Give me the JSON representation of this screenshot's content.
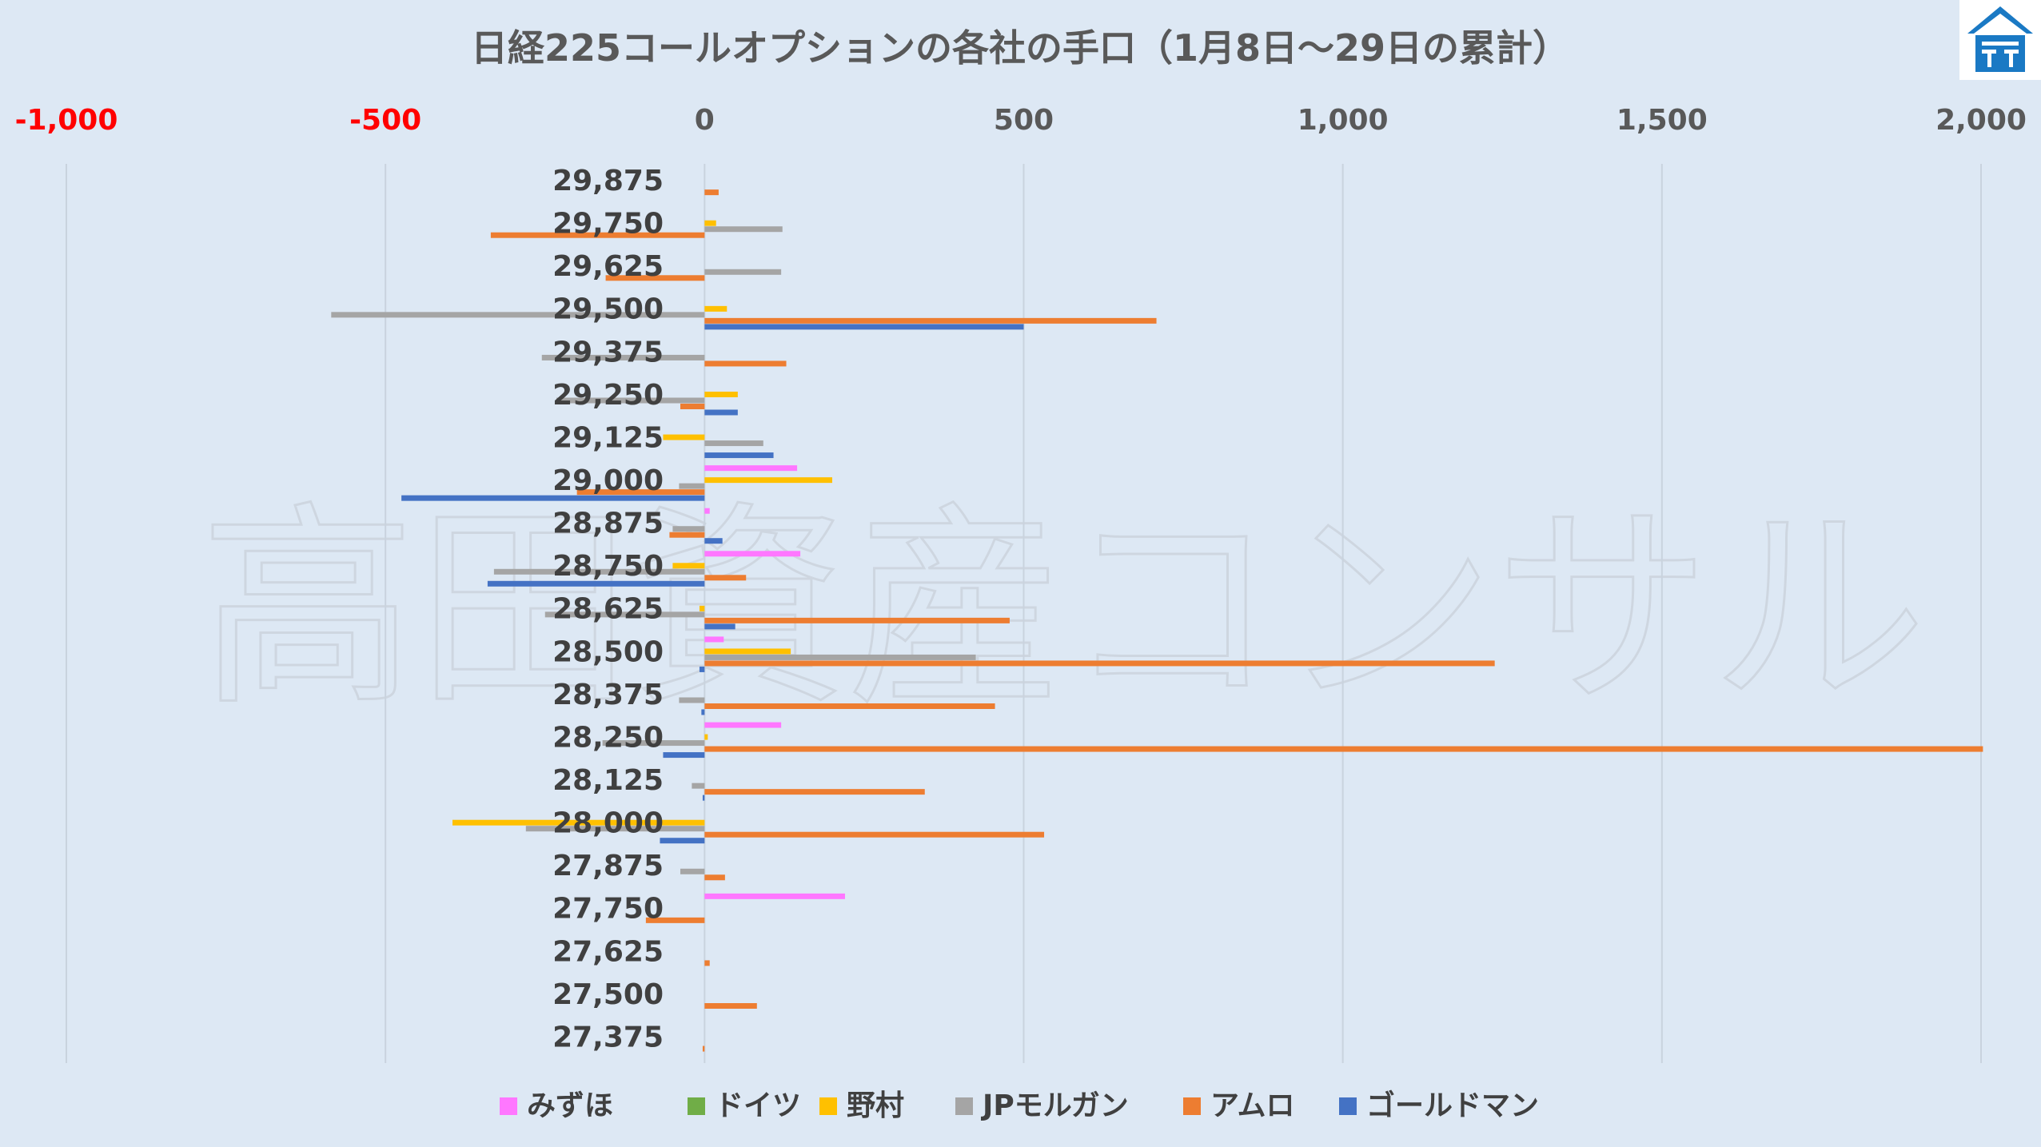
{
  "chart_data": {
    "type": "bar",
    "orientation": "horizontal",
    "title": "日経225コールオプションの各社の手口（1月8日〜29日の累計）",
    "watermark": "高田資産コンサル",
    "xlim": [
      -1000,
      2000
    ],
    "xticks": [
      -1000,
      -500,
      0,
      500,
      1000,
      1500,
      2000
    ],
    "xtick_labels": [
      "-1,000",
      "-500",
      "0",
      "500",
      "1,000",
      "1,500",
      "2,000"
    ],
    "negative_tick_color": "#ff0000",
    "positive_tick_color": "#595959",
    "grid": "vertical",
    "legend_position": "bottom",
    "categories": [
      "29,875",
      "29,750",
      "29,625",
      "29,500",
      "29,375",
      "29,250",
      "29,125",
      "29,000",
      "28,875",
      "28,750",
      "28,625",
      "28,500",
      "28,375",
      "28,250",
      "28,125",
      "28,000",
      "27,875",
      "27,750",
      "27,625",
      "27,500",
      "27,375"
    ],
    "series": [
      {
        "name": "みずほ",
        "color": "#ff77ff",
        "values": [
          0,
          0,
          0,
          0,
          0,
          0,
          0,
          145,
          8,
          150,
          0,
          30,
          0,
          120,
          0,
          0,
          0,
          220,
          0,
          0,
          0
        ]
      },
      {
        "name": "ドイツ",
        "color": "#70ad47",
        "values": [
          0,
          0,
          0,
          0,
          0,
          0,
          0,
          0,
          0,
          0,
          0,
          0,
          0,
          0,
          0,
          0,
          0,
          0,
          0,
          0,
          0
        ]
      },
      {
        "name": "野村",
        "color": "#ffc000",
        "values": [
          0,
          18,
          0,
          35,
          0,
          52,
          -65,
          200,
          0,
          -50,
          -8,
          135,
          0,
          5,
          0,
          -395,
          0,
          0,
          0,
          0,
          0
        ]
      },
      {
        "name": "JPモルガン",
        "color": "#a5a5a5",
        "values": [
          0,
          122,
          120,
          -585,
          -255,
          -232,
          92,
          -40,
          -50,
          -330,
          -250,
          425,
          -40,
          -160,
          -20,
          -280,
          -38,
          0,
          0,
          0,
          0
        ]
      },
      {
        "name": "アムロ",
        "color": "#ed7d31",
        "values": [
          22,
          -335,
          -155,
          708,
          128,
          -38,
          0,
          -200,
          -55,
          65,
          478,
          1238,
          455,
          2003,
          345,
          532,
          32,
          -92,
          8,
          82,
          -3
        ]
      },
      {
        "name": "ゴールドマン",
        "color": "#4472c4",
        "values": [
          0,
          0,
          0,
          500,
          0,
          52,
          108,
          -475,
          28,
          -340,
          48,
          -8,
          -5,
          -65,
          -3,
          -70,
          0,
          0,
          0,
          0,
          0
        ]
      }
    ]
  }
}
